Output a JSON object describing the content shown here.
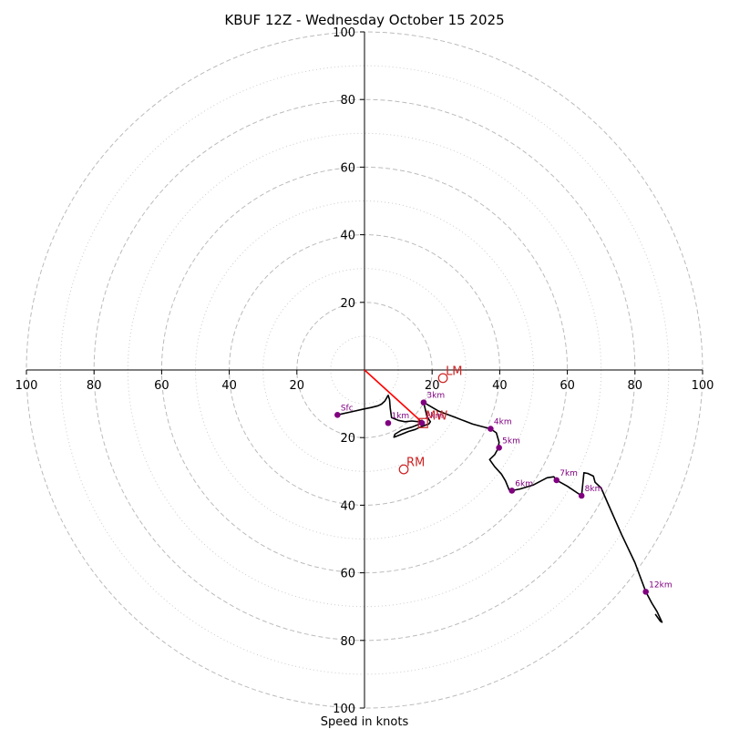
{
  "chart_data": {
    "type": "hodograph",
    "title": "KBUF 12Z - Wednesday October 15 2025",
    "xlabel": "Speed in knots",
    "range_knots": 100,
    "major_rings": [
      20,
      40,
      60,
      80,
      100
    ],
    "minor_rings": [
      10,
      30,
      50,
      70,
      90
    ],
    "tick_values": [
      20,
      40,
      60,
      80,
      100
    ],
    "colors": {
      "trace": "#000000",
      "height_markers": "#800080",
      "storm_motion": "#cc2222",
      "shear_vector": "#ff0000",
      "ring_major": "#bbbbbb",
      "ring_minor": "#cccccc"
    },
    "trace": [
      [
        -8,
        -13.3
      ],
      [
        -4,
        -12.4
      ],
      [
        0,
        -11.5
      ],
      [
        2,
        -11.1
      ],
      [
        4,
        -10.6
      ],
      [
        5,
        -10.1
      ],
      [
        6,
        -9.2
      ],
      [
        7,
        -7.5
      ],
      [
        7.4,
        -8.8
      ],
      [
        7.6,
        -11.2
      ],
      [
        8,
        -14.1
      ],
      [
        10,
        -14.9
      ],
      [
        12,
        -15.3
      ],
      [
        14,
        -15.1
      ],
      [
        16,
        -15.3
      ],
      [
        17,
        -14.9
      ],
      [
        17,
        -15.7
      ],
      [
        14,
        -16.9
      ],
      [
        11,
        -17.8
      ],
      [
        9,
        -19.0
      ],
      [
        8.7,
        -19.9
      ],
      [
        9.2,
        -19.7
      ],
      [
        11,
        -19.0
      ],
      [
        13,
        -18.2
      ],
      [
        15,
        -17.6
      ],
      [
        16.5,
        -16.9
      ],
      [
        17,
        -16.7
      ],
      [
        18,
        -16.3
      ],
      [
        19,
        -16.0
      ],
      [
        19.5,
        -15.3
      ],
      [
        18.5,
        -13.8
      ],
      [
        17.5,
        -9.6
      ],
      [
        22,
        -12.2
      ],
      [
        27,
        -14.1
      ],
      [
        32,
        -16.0
      ],
      [
        37.3,
        -17.4
      ],
      [
        39,
        -18.6
      ],
      [
        39.8,
        -21.4
      ],
      [
        39.5,
        -23.3
      ],
      [
        38.5,
        -25.1
      ],
      [
        37,
        -26.5
      ],
      [
        38.5,
        -28.6
      ],
      [
        40.5,
        -30.8
      ],
      [
        41.7,
        -32.8
      ],
      [
        42.8,
        -35.5
      ],
      [
        43.6,
        -35.7
      ],
      [
        46,
        -35.2
      ],
      [
        50,
        -34.0
      ],
      [
        54,
        -31.9
      ],
      [
        56,
        -31.6
      ],
      [
        56.8,
        -32.6
      ],
      [
        60,
        -34.4
      ],
      [
        64.2,
        -37.2
      ],
      [
        64.5,
        -34.4
      ],
      [
        64.9,
        -30.4
      ],
      [
        66,
        -30.6
      ],
      [
        67.7,
        -31.4
      ],
      [
        68.2,
        -33.2
      ],
      [
        70,
        -34.9
      ],
      [
        72,
        -39.5
      ],
      [
        76,
        -48.6
      ],
      [
        80,
        -57.0
      ],
      [
        83.2,
        -65.6
      ],
      [
        85,
        -69.0
      ],
      [
        86.5,
        -71.4
      ],
      [
        88,
        -74.6
      ],
      [
        87.5,
        -74.3
      ],
      [
        86,
        -72.2
      ]
    ],
    "height_markers": [
      {
        "label": "Sfc",
        "u": -8,
        "v": -13.3
      },
      {
        "label": "1km",
        "u": 7,
        "v": -15.7
      },
      {
        "label": "2km",
        "u": 17,
        "v": -15.7
      },
      {
        "label": "3km",
        "u": 17.5,
        "v": -9.6
      },
      {
        "label": "4km",
        "u": 37.3,
        "v": -17.4
      },
      {
        "label": "5km",
        "u": 39.8,
        "v": -23.0
      },
      {
        "label": "6km",
        "u": 43.6,
        "v": -35.7
      },
      {
        "label": "7km",
        "u": 56.8,
        "v": -32.6
      },
      {
        "label": "8km",
        "u": 64.2,
        "v": -37.2
      },
      {
        "label": "12km",
        "u": 83.2,
        "v": -65.6
      }
    ],
    "storm_motions": [
      {
        "label": "LM",
        "u": 23.2,
        "v": -2.4
      },
      {
        "label": "MW",
        "u": 17.3,
        "v": -15.7
      },
      {
        "label": "RM",
        "u": 11.6,
        "v": -29.4
      }
    ],
    "shear_vector": {
      "from": [
        0,
        0
      ],
      "to": [
        17.3,
        -15.7
      ]
    }
  }
}
